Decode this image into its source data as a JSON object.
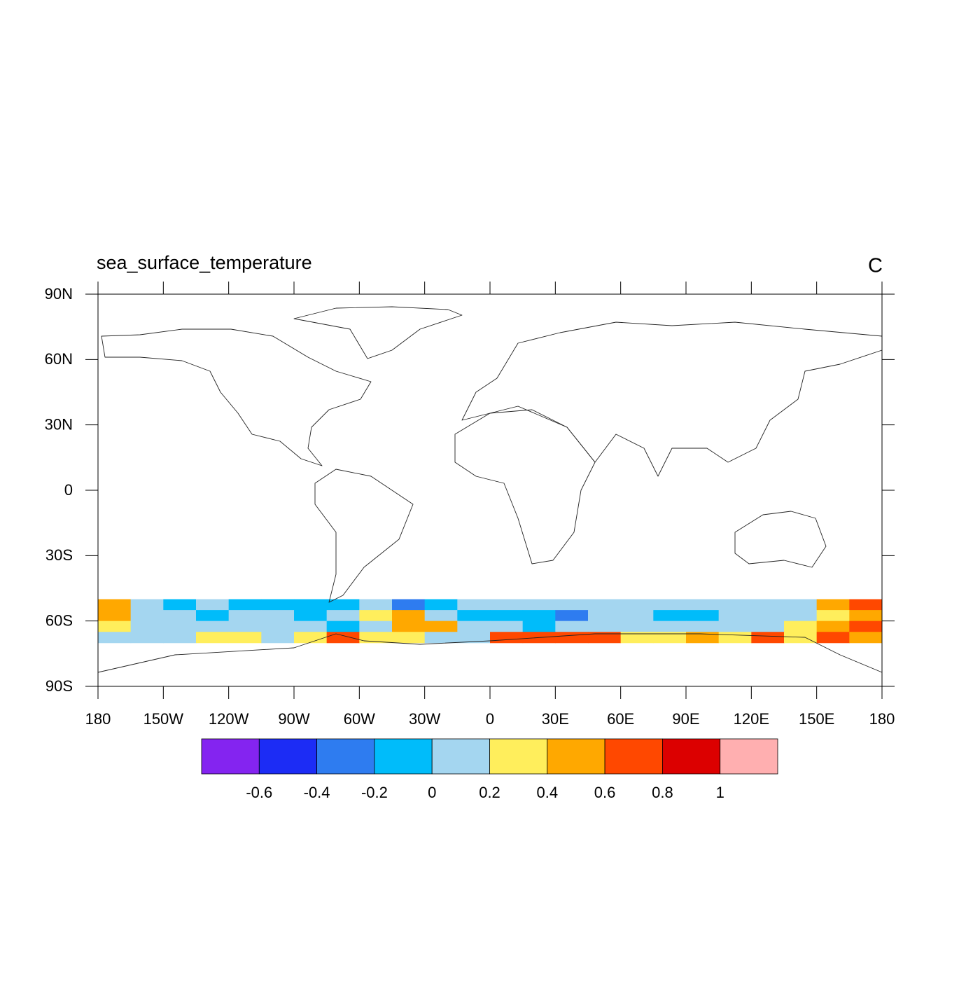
{
  "chart_data": {
    "type": "heatmap",
    "title": "sea_surface_temperature",
    "units": "C",
    "x": [
      -180,
      -165,
      -150,
      -135,
      -120,
      -105,
      -90,
      -75,
      -60,
      -45,
      -30,
      -15,
      0,
      15,
      30,
      45,
      60,
      75,
      90,
      105,
      120,
      135,
      150,
      165,
      180
    ],
    "y": [
      -50,
      -55,
      -60,
      -65,
      -70
    ],
    "values": [
      [
        0.5,
        0.1,
        -0.05,
        0.1,
        -0.05,
        -0.05,
        -0.05,
        -0.1,
        0.1,
        -0.3,
        -0.05,
        0.1,
        0.1,
        0.1,
        0.1,
        0.1,
        0.1,
        0.1,
        0.1,
        0.1,
        0.1,
        0.1,
        0.5,
        0.7
      ],
      [
        0.4,
        0.1,
        0.1,
        -0.05,
        0.1,
        0.1,
        -0.05,
        0.1,
        0.3,
        0.4,
        0.1,
        -0.05,
        -0.2,
        -0.1,
        -0.3,
        0.1,
        0.1,
        -0.05,
        -0.05,
        0.1,
        0.1,
        0.1,
        0.3,
        0.5
      ],
      [
        0.3,
        0.1,
        0.1,
        0.1,
        0.1,
        0.1,
        0.1,
        -0.05,
        0.1,
        0.5,
        0.5,
        0.1,
        0.1,
        -0.05,
        0.1,
        0.1,
        0.1,
        0.1,
        0.1,
        0.1,
        0.1,
        0.3,
        0.5,
        0.6
      ],
      [
        0.1,
        0.1,
        0.1,
        0.3,
        0.3,
        0.1,
        0.3,
        0.7,
        0.3,
        0.3,
        0.1,
        0.1,
        0.6,
        0.6,
        0.6,
        0.6,
        0.3,
        0.3,
        0.5,
        0.3,
        0.6,
        0.3,
        0.7,
        0.5
      ]
    ],
    "levels": [
      -0.6,
      -0.4,
      -0.2,
      0,
      0.2,
      0.4,
      0.6,
      0.8,
      1
    ],
    "colors": [
      "#8424f0",
      "#1c2cf5",
      "#2e7cf0",
      "#00bcfa",
      "#a4d6f0",
      "#ffee5c",
      "#ffa800",
      "#ff4800",
      "#dc0000",
      "#ffafb0"
    ],
    "xlim": [
      -180,
      180
    ],
    "ylim": [
      -90,
      90
    ],
    "xticks": [
      {
        "value": -180,
        "label": "180"
      },
      {
        "value": -150,
        "label": "150W"
      },
      {
        "value": -120,
        "label": "120W"
      },
      {
        "value": -90,
        "label": "90W"
      },
      {
        "value": -60,
        "label": "60W"
      },
      {
        "value": -30,
        "label": "30W"
      },
      0,
      {
        "value": 30,
        "label": "30E"
      },
      {
        "value": 60,
        "label": "60E"
      },
      {
        "value": 90,
        "label": "90E"
      },
      {
        "value": 120,
        "label": "120E"
      },
      {
        "value": 150,
        "label": "150E"
      },
      {
        "value": 180,
        "label": "180"
      }
    ],
    "yticks": [
      {
        "value": 90,
        "label": "90N"
      },
      {
        "value": 60,
        "label": "60N"
      },
      {
        "value": 30,
        "label": "30N"
      },
      0,
      {
        "value": -30,
        "label": "30S"
      },
      {
        "value": -60,
        "label": "60S"
      },
      {
        "value": -90,
        "label": "90S"
      }
    ]
  }
}
